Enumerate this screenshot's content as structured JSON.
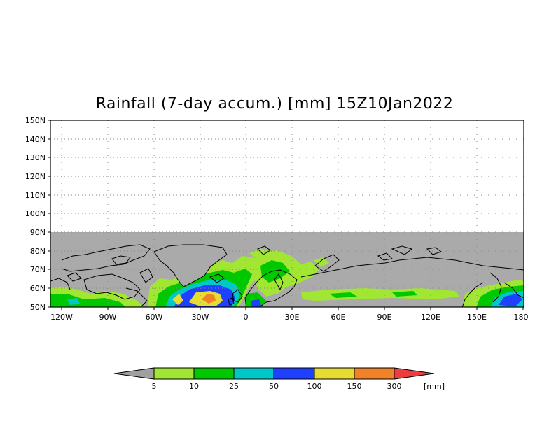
{
  "title": "Rainfall (7-day accum.) [mm] 15Z10Jan2022",
  "map": {
    "lat_ticks": [
      "150N",
      "140N",
      "130N",
      "120N",
      "110N",
      "100N",
      "90N",
      "80N",
      "70N",
      "60N",
      "50N"
    ],
    "lon_ticks": [
      "120W",
      "90W",
      "60W",
      "30W",
      "0",
      "30E",
      "60E",
      "90E",
      "120E",
      "150E",
      "180"
    ],
    "lat_range": [
      50,
      150
    ],
    "lon_range": [
      -128,
      180
    ],
    "colors": {
      "land": "#aaaaaa",
      "grid": "#777777",
      "coast": "#000000"
    }
  },
  "colorbar": {
    "labels": [
      "5",
      "10",
      "25",
      "50",
      "100",
      "150",
      "300"
    ],
    "unit": "[mm]",
    "colors": [
      "#a0a0a0",
      "#a0e632",
      "#00c800",
      "#00c8c8",
      "#2040ff",
      "#e6dc32",
      "#f08228",
      "#f03c3c"
    ]
  }
}
